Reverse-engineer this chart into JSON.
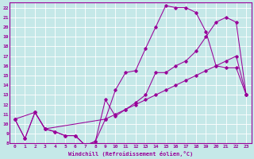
{
  "xlabel": "Windchill (Refroidissement éolien,°C)",
  "xlim": [
    -0.5,
    23.5
  ],
  "ylim": [
    8,
    22.5
  ],
  "xticks": [
    0,
    1,
    2,
    3,
    4,
    5,
    6,
    7,
    8,
    9,
    10,
    11,
    12,
    13,
    14,
    15,
    16,
    17,
    18,
    19,
    20,
    21,
    22,
    23
  ],
  "yticks": [
    8,
    9,
    10,
    11,
    12,
    13,
    14,
    15,
    16,
    17,
    18,
    19,
    20,
    21,
    22
  ],
  "background_color": "#c5e8e8",
  "grid_color": "#aad4d4",
  "line_color": "#990099",
  "line1_x": [
    0,
    1,
    2,
    3,
    4,
    5,
    6,
    7,
    8,
    9,
    10,
    11,
    12,
    13,
    14,
    15,
    16,
    17,
    18,
    19,
    20,
    21,
    22,
    23
  ],
  "line1_y": [
    10.5,
    8.5,
    11.2,
    9.5,
    9.2,
    8.8,
    8.8,
    7.8,
    8.2,
    12.5,
    10.8,
    11.5,
    12.2,
    13.0,
    15.3,
    15.3,
    16.0,
    16.5,
    17.5,
    19.0,
    20.5,
    21.0,
    20.5,
    13.0
  ],
  "line2_x": [
    0,
    1,
    2,
    3,
    4,
    5,
    6,
    7,
    8,
    9,
    10,
    11,
    12,
    13,
    14,
    15,
    16,
    17,
    18,
    19,
    20,
    21,
    22,
    23
  ],
  "line2_y": [
    10.5,
    8.5,
    11.2,
    9.5,
    9.2,
    8.8,
    8.8,
    7.8,
    8.2,
    10.5,
    13.5,
    15.3,
    15.5,
    17.8,
    20.0,
    22.2,
    22.0,
    22.0,
    21.5,
    19.5,
    16.0,
    15.8,
    15.8,
    13.0
  ],
  "line3_x": [
    0,
    2,
    3,
    9,
    10,
    11,
    12,
    13,
    14,
    15,
    16,
    17,
    18,
    19,
    20,
    21,
    22,
    23
  ],
  "line3_y": [
    10.5,
    11.2,
    9.5,
    10.5,
    11.0,
    11.5,
    12.0,
    12.5,
    13.0,
    13.5,
    14.0,
    14.5,
    15.0,
    15.5,
    16.0,
    16.5,
    17.0,
    13.0
  ]
}
